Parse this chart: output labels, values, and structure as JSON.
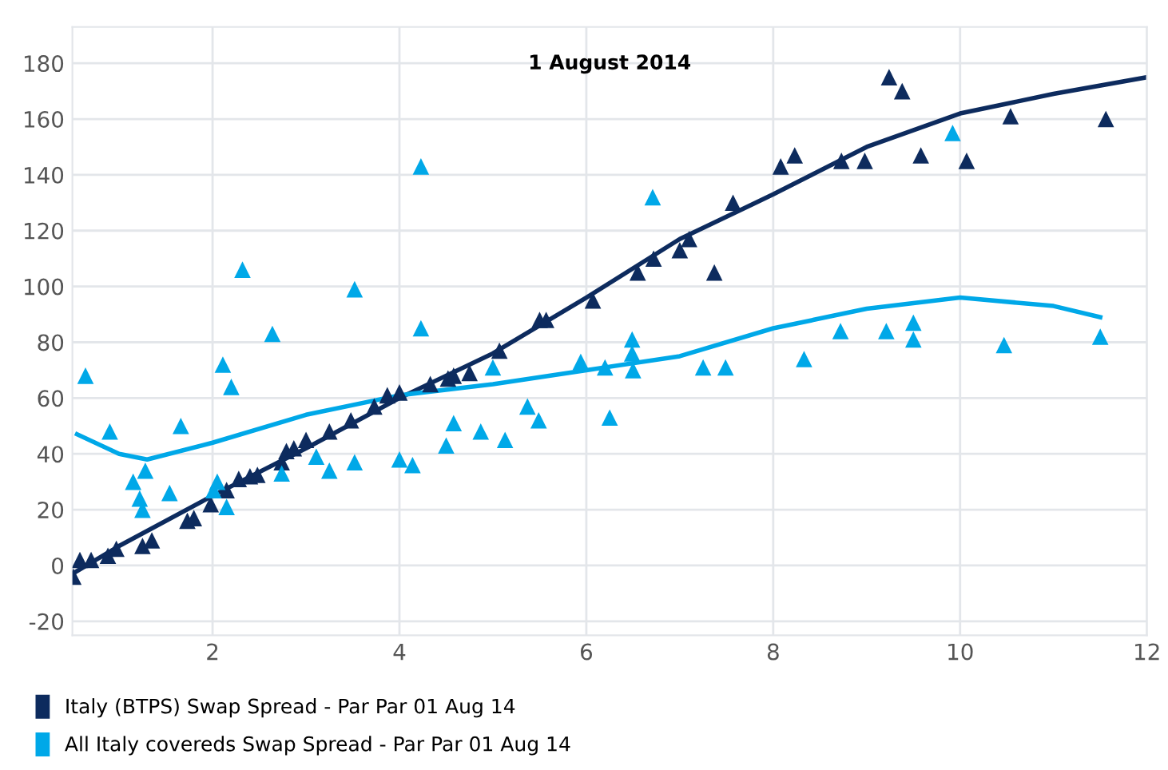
{
  "chart_data": {
    "type": "scatter",
    "title": "1 August 2014",
    "xlim": [
      0.5,
      12
    ],
    "xticks": [
      2,
      4,
      6,
      8,
      10,
      12
    ],
    "ylim": [
      -25,
      193
    ],
    "yticks": [
      -20,
      0,
      20,
      40,
      60,
      80,
      100,
      120,
      140,
      160,
      180
    ],
    "grid": true,
    "legend": "bottom",
    "marker": "triangle",
    "series": [
      {
        "name": "Italy (BTPS) Swap Spread - Par Par 01 Aug 14",
        "color": "#0d2b5e",
        "x": [
          0.51,
          0.58,
          0.7,
          0.88,
          0.97,
          1.25,
          1.35,
          1.73,
          1.8,
          1.98,
          2.15,
          2.28,
          2.4,
          2.48,
          2.74,
          2.79,
          2.87,
          3.0,
          3.25,
          3.48,
          3.73,
          3.87,
          4.0,
          4.33,
          4.52,
          4.58,
          4.75,
          5.07,
          5.5,
          5.57,
          6.07,
          6.55,
          6.72,
          7.0,
          7.1,
          7.37,
          7.57,
          8.08,
          8.23,
          8.73,
          8.98,
          9.24,
          9.38,
          9.58,
          10.07,
          10.54,
          11.56
        ],
        "values": [
          -4,
          2,
          2,
          3.5,
          6,
          7,
          9,
          16,
          17,
          22,
          27,
          31,
          32,
          32.5,
          37,
          41,
          42,
          45,
          48,
          52,
          57,
          61,
          62,
          65,
          67,
          68,
          69,
          77,
          88,
          88,
          95,
          105,
          110,
          113,
          117,
          105,
          130,
          143,
          147,
          145,
          145,
          175,
          170,
          147,
          145,
          161,
          160
        ]
      },
      {
        "name": "All Italy covereds Swap Spread - Par Par 01 Aug 14",
        "color": "#00a8e8",
        "x": [
          0.64,
          0.9,
          1.15,
          1.22,
          1.25,
          1.28,
          1.54,
          1.66,
          2.01,
          2.05,
          2.11,
          2.15,
          2.2,
          2.32,
          2.64,
          2.74,
          3.11,
          3.25,
          3.52,
          3.52,
          4.0,
          4.14,
          4.23,
          4.23,
          4.5,
          4.58,
          4.87,
          5.0,
          5.13,
          5.37,
          5.49,
          5.94,
          6.2,
          6.25,
          6.49,
          6.49,
          6.5,
          6.71,
          7.25,
          7.49,
          8.33,
          8.72,
          9.21,
          9.5,
          9.5,
          9.92,
          10.47,
          11.5
        ],
        "values": [
          68,
          48,
          30,
          24,
          20,
          34,
          26,
          50,
          27,
          30,
          72,
          21,
          64,
          106,
          83,
          33,
          39,
          34,
          99,
          37,
          38,
          36,
          143,
          85,
          43,
          51,
          48,
          71,
          45,
          57,
          52,
          73,
          71,
          53,
          81,
          76,
          70,
          132,
          71,
          71,
          74,
          84,
          84,
          87,
          81,
          155,
          79,
          82
        ]
      },
      {
        "type": "line",
        "marker": "none",
        "color": "#0d2b5e",
        "x": [
          0.5,
          1,
          2,
          3,
          4,
          5,
          6,
          7,
          8,
          9,
          10,
          11,
          12
        ],
        "values": [
          -3,
          7,
          25,
          42,
          60,
          76,
          96,
          117,
          133,
          150,
          162,
          169,
          175
        ]
      },
      {
        "type": "line",
        "marker": "none",
        "color": "#00a8e8",
        "x": [
          0.55,
          1,
          1.3,
          2,
          3,
          4,
          5,
          6,
          7,
          8,
          9,
          10,
          11,
          11.5
        ],
        "values": [
          47,
          40,
          38,
          44,
          54,
          61,
          65,
          70,
          75,
          85,
          92,
          96,
          93,
          89
        ]
      }
    ]
  }
}
